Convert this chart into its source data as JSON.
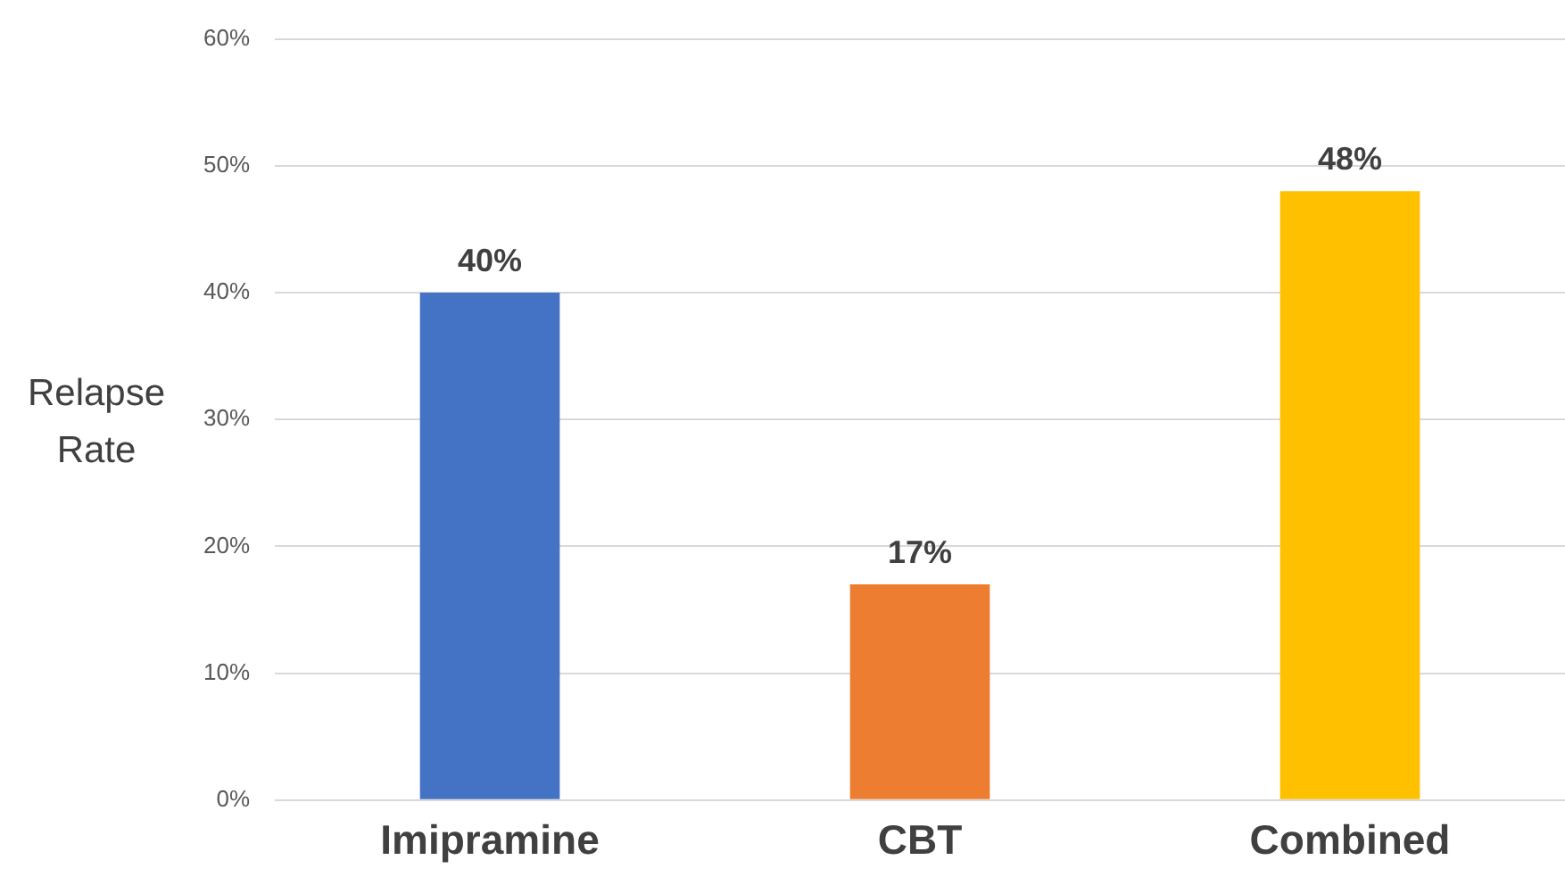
{
  "chart_data": {
    "type": "bar",
    "ylabel": "Relapse Rate",
    "categories": [
      "Imipramine",
      "CBT",
      "Combined"
    ],
    "values": [
      40,
      17,
      48
    ],
    "colors": [
      "#4472c4",
      "#ed7d31",
      "#ffc000"
    ],
    "value_labels": [
      "40%",
      "17%",
      "48%"
    ],
    "ylim": [
      0,
      60
    ],
    "yticks": [
      {
        "value": 0,
        "label": "0%"
      },
      {
        "value": 10,
        "label": "10%"
      },
      {
        "value": 20,
        "label": "20%"
      },
      {
        "value": 30,
        "label": "30%"
      },
      {
        "value": 40,
        "label": "40%"
      },
      {
        "value": 50,
        "label": "50%"
      },
      {
        "value": 60,
        "label": "60%"
      }
    ],
    "grid": "y",
    "legend": false
  }
}
